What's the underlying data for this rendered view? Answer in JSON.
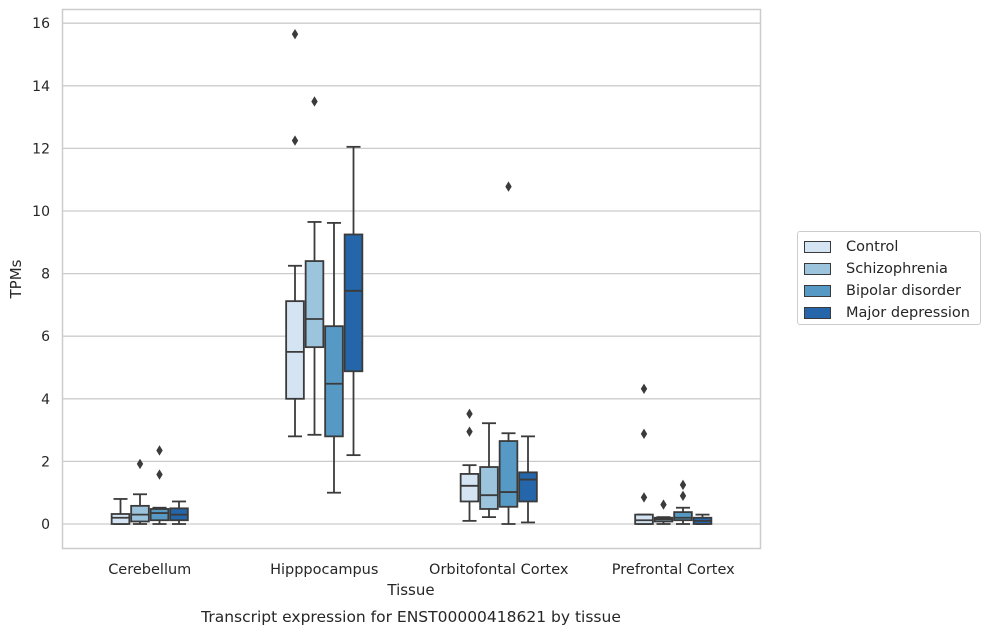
{
  "chart_data": {
    "type": "box",
    "title": "Transcript expression for ENST00000418621 by tissue",
    "xlabel": "Tissue",
    "ylabel": "TPMs",
    "ylim": [
      -0.75,
      16.5
    ],
    "yticks": [
      0,
      2,
      4,
      6,
      8,
      10,
      12,
      14,
      16
    ],
    "grid": "horizontal",
    "legend_placement": "right",
    "categories": [
      "Cerebellum",
      "Hipppocampus",
      "Orbitofontal Cortex",
      "Prefrontal Cortex"
    ],
    "series": [
      {
        "name": "Control",
        "color": "#d4e4f3",
        "boxes": [
          {
            "whislo": 0.0,
            "q1": 0.0,
            "med": 0.2,
            "q3": 0.32,
            "whishi": 0.8,
            "fliers": []
          },
          {
            "whislo": 2.8,
            "q1": 4.0,
            "med": 5.5,
            "q3": 7.12,
            "whishi": 8.25,
            "fliers": [
              12.25,
              15.65
            ]
          },
          {
            "whislo": 0.1,
            "q1": 0.72,
            "med": 1.22,
            "q3": 1.6,
            "whishi": 1.88,
            "fliers": [
              2.95,
              3.52
            ]
          },
          {
            "whislo": 0.0,
            "q1": 0.0,
            "med": 0.12,
            "q3": 0.3,
            "whishi": 0.3,
            "fliers": [
              0.85,
              2.88,
              4.32
            ]
          }
        ]
      },
      {
        "name": "Schizophrenia",
        "color": "#9cc4dd",
        "boxes": [
          {
            "whislo": 0.0,
            "q1": 0.08,
            "med": 0.3,
            "q3": 0.58,
            "whishi": 0.95,
            "fliers": [
              1.92
            ]
          },
          {
            "whislo": 2.85,
            "q1": 5.65,
            "med": 6.55,
            "q3": 8.4,
            "whishi": 9.65,
            "fliers": [
              13.5
            ]
          },
          {
            "whislo": 0.22,
            "q1": 0.48,
            "med": 0.92,
            "q3": 1.82,
            "whishi": 3.22,
            "fliers": []
          },
          {
            "whislo": 0.0,
            "q1": 0.08,
            "med": 0.15,
            "q3": 0.2,
            "whishi": 0.22,
            "fliers": [
              0.62
            ]
          }
        ]
      },
      {
        "name": "Bipolar disorder",
        "color": "#5599c4",
        "boxes": [
          {
            "whislo": 0.0,
            "q1": 0.12,
            "med": 0.35,
            "q3": 0.48,
            "whishi": 0.52,
            "fliers": [
              1.58,
              2.35
            ]
          },
          {
            "whislo": 1.0,
            "q1": 2.8,
            "med": 4.48,
            "q3": 6.32,
            "whishi": 9.62,
            "fliers": []
          },
          {
            "whislo": 0.0,
            "q1": 0.55,
            "med": 1.02,
            "q3": 2.65,
            "whishi": 2.9,
            "fliers": [
              10.78
            ]
          },
          {
            "whislo": 0.0,
            "q1": 0.12,
            "med": 0.2,
            "q3": 0.38,
            "whishi": 0.52,
            "fliers": [
              0.9,
              1.25
            ]
          }
        ]
      },
      {
        "name": "Major depression",
        "color": "#2466a9",
        "boxes": [
          {
            "whislo": 0.0,
            "q1": 0.12,
            "med": 0.3,
            "q3": 0.5,
            "whishi": 0.72,
            "fliers": []
          },
          {
            "whislo": 2.2,
            "q1": 4.88,
            "med": 7.45,
            "q3": 9.25,
            "whishi": 12.05,
            "fliers": []
          },
          {
            "whislo": 0.05,
            "q1": 0.72,
            "med": 1.42,
            "q3": 1.65,
            "whishi": 2.8,
            "fliers": []
          },
          {
            "whislo": 0.0,
            "q1": 0.0,
            "med": 0.1,
            "q3": 0.2,
            "whishi": 0.3,
            "fliers": []
          }
        ]
      }
    ]
  }
}
